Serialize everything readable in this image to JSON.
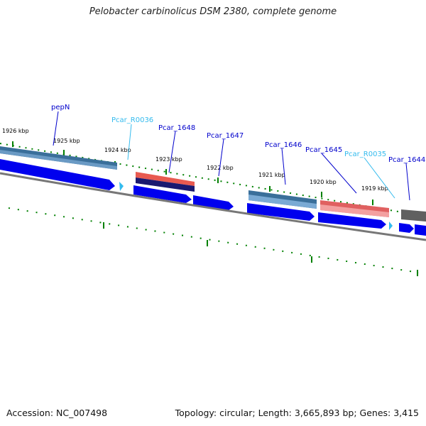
{
  "title": "Pelobacter carbinolicus DSM 2380, complete genome",
  "footer": {
    "accession": "Accession: NC_007498",
    "topology": "Topology: circular; Length: 3,665,893 bp; Genes: 3,415"
  },
  "colors": {
    "cds_blue": "#0000ff",
    "gene_steel": "#4682b4",
    "gene_red": "#f07070",
    "gene_dark": "#191970",
    "gene_gray": "#707070",
    "rna_cyan": "#40c0e8",
    "tick_green": "#008000",
    "label_blue": "#0000cc",
    "label_cyan": "#33bbee",
    "backbone": "#777777"
  },
  "kbp_labels": [
    "1926 kbp",
    "1925 kbp",
    "1924 kbp",
    "1923 kbp",
    "1922 kbp",
    "1921 kbp",
    "1920 kbp",
    "1919 kbp"
  ],
  "gene_labels": [
    {
      "text": "pepN",
      "kind": "protein"
    },
    {
      "text": "Pcar_R0036",
      "kind": "rna"
    },
    {
      "text": "Pcar_1648",
      "kind": "protein"
    },
    {
      "text": "Pcar_1647",
      "kind": "protein"
    },
    {
      "text": "Pcar_1646",
      "kind": "protein"
    },
    {
      "text": "Pcar_1645",
      "kind": "protein"
    },
    {
      "text": "Pcar_R0035",
      "kind": "rna"
    },
    {
      "text": "Pcar_1644",
      "kind": "protein"
    }
  ]
}
